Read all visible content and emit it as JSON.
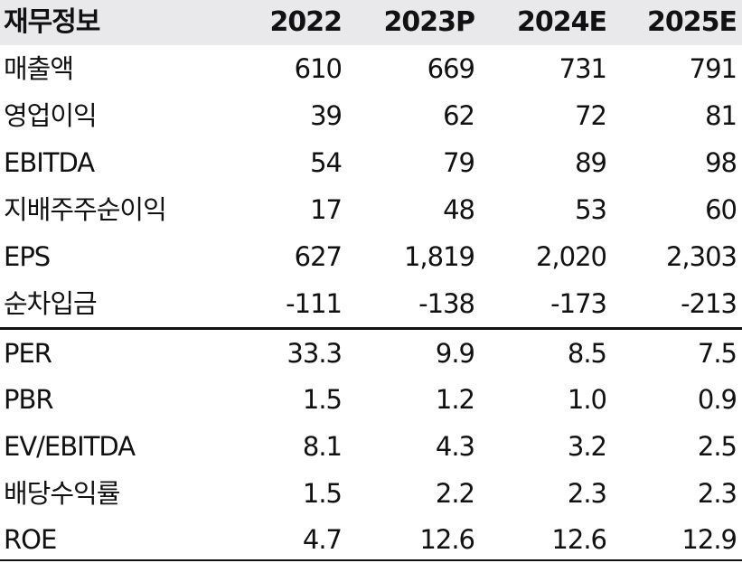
{
  "table": {
    "header": {
      "label": "재무정보",
      "columns": [
        "2022",
        "2023P",
        "2024E",
        "2025E"
      ]
    },
    "section1": [
      {
        "label": "매출액",
        "values": [
          "610",
          "669",
          "731",
          "791"
        ]
      },
      {
        "label": "영업이익",
        "values": [
          "39",
          "62",
          "72",
          "81"
        ]
      },
      {
        "label": "EBITDA",
        "values": [
          "54",
          "79",
          "89",
          "98"
        ]
      },
      {
        "label": "지배주주순이익",
        "values": [
          "17",
          "48",
          "53",
          "60"
        ]
      },
      {
        "label": "EPS",
        "values": [
          "627",
          "1,819",
          "2,020",
          "2,303"
        ]
      },
      {
        "label": "순차입금",
        "values": [
          "-111",
          "-138",
          "-173",
          "-213"
        ]
      }
    ],
    "section2": [
      {
        "label": "PER",
        "values": [
          "33.3",
          "9.9",
          "8.5",
          "7.5"
        ]
      },
      {
        "label": "PBR",
        "values": [
          "1.5",
          "1.2",
          "1.0",
          "0.9"
        ]
      },
      {
        "label": "EV/EBITDA",
        "values": [
          "8.1",
          "4.3",
          "3.2",
          "2.5"
        ]
      },
      {
        "label": "배당수익률",
        "values": [
          "1.5",
          "2.2",
          "2.3",
          "2.3"
        ]
      },
      {
        "label": "ROE",
        "values": [
          "4.7",
          "12.6",
          "12.6",
          "12.9"
        ]
      }
    ]
  }
}
